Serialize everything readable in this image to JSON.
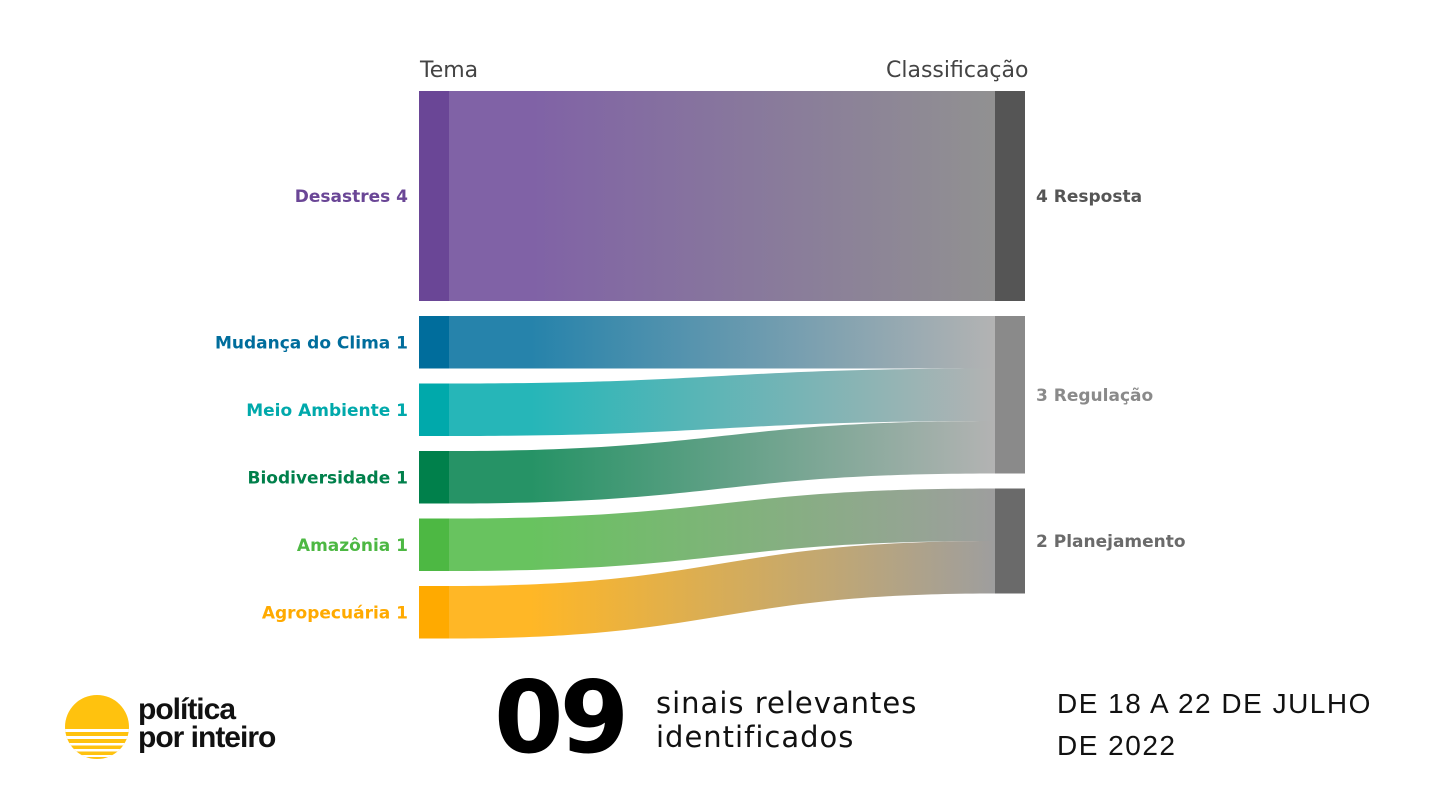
{
  "chart_data": {
    "type": "sankey",
    "left_header": "Tema",
    "right_header": "Classificação",
    "sources": [
      {
        "name": "Desastres",
        "value": 4,
        "color": "#6a4696"
      },
      {
        "name": "Mudança do Clima",
        "value": 1,
        "color": "#006d9c"
      },
      {
        "name": "Meio Ambiente",
        "value": 1,
        "color": "#00a9ab"
      },
      {
        "name": "Biodiversidade",
        "value": 1,
        "color": "#00804b"
      },
      {
        "name": "Amazônia",
        "value": 1,
        "color": "#4db843"
      },
      {
        "name": "Agropecuária",
        "value": 1,
        "color": "#ffaa00"
      }
    ],
    "targets": [
      {
        "name": "Resposta",
        "value": 4,
        "color": "#555555"
      },
      {
        "name": "Regulação",
        "value": 3,
        "color": "#8a8a8a"
      },
      {
        "name": "Planejamento",
        "value": 2,
        "color": "#6a6a6a"
      }
    ],
    "links": [
      {
        "source": "Desastres",
        "target": "Resposta",
        "value": 4
      },
      {
        "source": "Mudança do Clima",
        "target": "Regulação",
        "value": 1
      },
      {
        "source": "Meio Ambiente",
        "target": "Regulação",
        "value": 1
      },
      {
        "source": "Biodiversidade",
        "target": "Regulação",
        "value": 1
      },
      {
        "source": "Amazônia",
        "target": "Planejamento",
        "value": 1
      },
      {
        "source": "Agropecuária",
        "target": "Planejamento",
        "value": 1
      }
    ]
  },
  "footer": {
    "logo_line1": "política",
    "logo_line2": "por inteiro",
    "count": "09",
    "count_line1": "sinais relevantes",
    "count_line2": "identificados",
    "date_line1": "DE 18 A 22 DE JULHO",
    "date_line2": "DE 2022"
  }
}
